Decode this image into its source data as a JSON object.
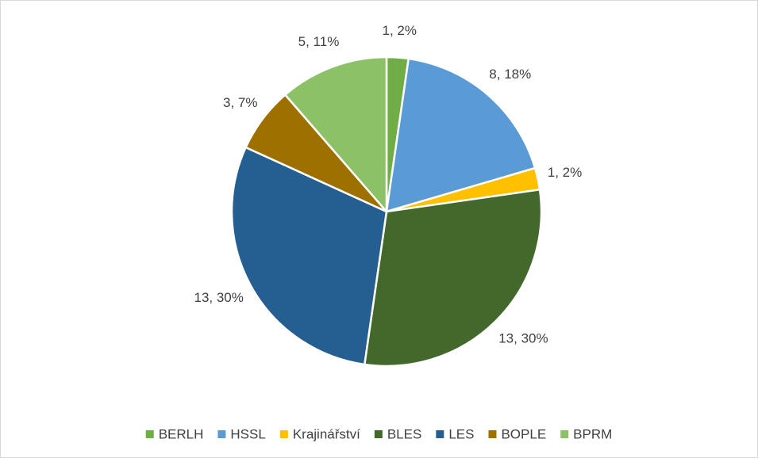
{
  "chart_data": {
    "type": "pie",
    "categories": [
      "BERLH",
      "HSSL",
      "Krajinářství",
      "BLES",
      "LES",
      "BOPLE",
      "BPRM"
    ],
    "values": [
      1,
      8,
      1,
      13,
      13,
      3,
      5
    ],
    "value_labels": [
      "1, 2%",
      "8, 18%",
      "1, 2%",
      "13, 30%",
      "13, 30%",
      "3, 7%",
      "5, 11%"
    ],
    "colors": [
      "#70ad47",
      "#5b9bd5",
      "#ffc000",
      "#43682b",
      "#255e91",
      "#9e7000",
      "#8cc168"
    ],
    "legend": "bottom"
  }
}
